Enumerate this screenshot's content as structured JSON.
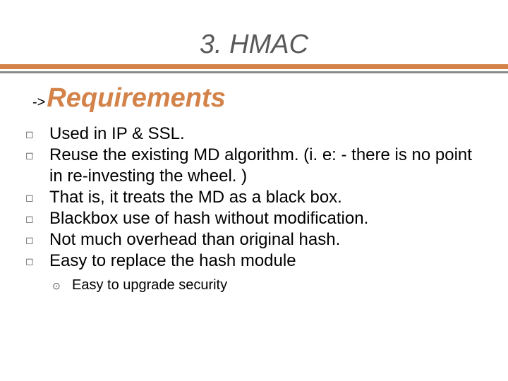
{
  "title": {
    "text": "3. HMAC",
    "color": "#595959",
    "fontsize": 38,
    "italic": true
  },
  "title_bars": {
    "thick_color": "#d38349",
    "thin_color": "#8a8a8a",
    "thick_height": 7,
    "thin_height": 3,
    "gap": 3
  },
  "subtitle": {
    "prefix": "->",
    "prefix_color": "#000000",
    "prefix_fontsize": 20,
    "text": "Requirements",
    "color": "#d38349",
    "fontsize": 38,
    "italic": true,
    "bold": true
  },
  "bullets": {
    "marker": "◻",
    "marker_color": "#595959",
    "text_color": "#000000",
    "text_fontsize": 24,
    "items": [
      "Used in IP & SSL.",
      "Reuse the existing MD algorithm. (i. e: - there is no point in re-investing the wheel. )",
      "That is, it treats the MD as a black box.",
      "Blackbox use of hash without modification.",
      "Not much overhead than original hash.",
      "Easy to replace the hash module"
    ]
  },
  "sub_bullets": {
    "marker": "⊙",
    "marker_color": "#595959",
    "text_color": "#000000",
    "text_fontsize": 20,
    "items": [
      "Easy to upgrade security"
    ]
  },
  "background_color": "#ffffff"
}
